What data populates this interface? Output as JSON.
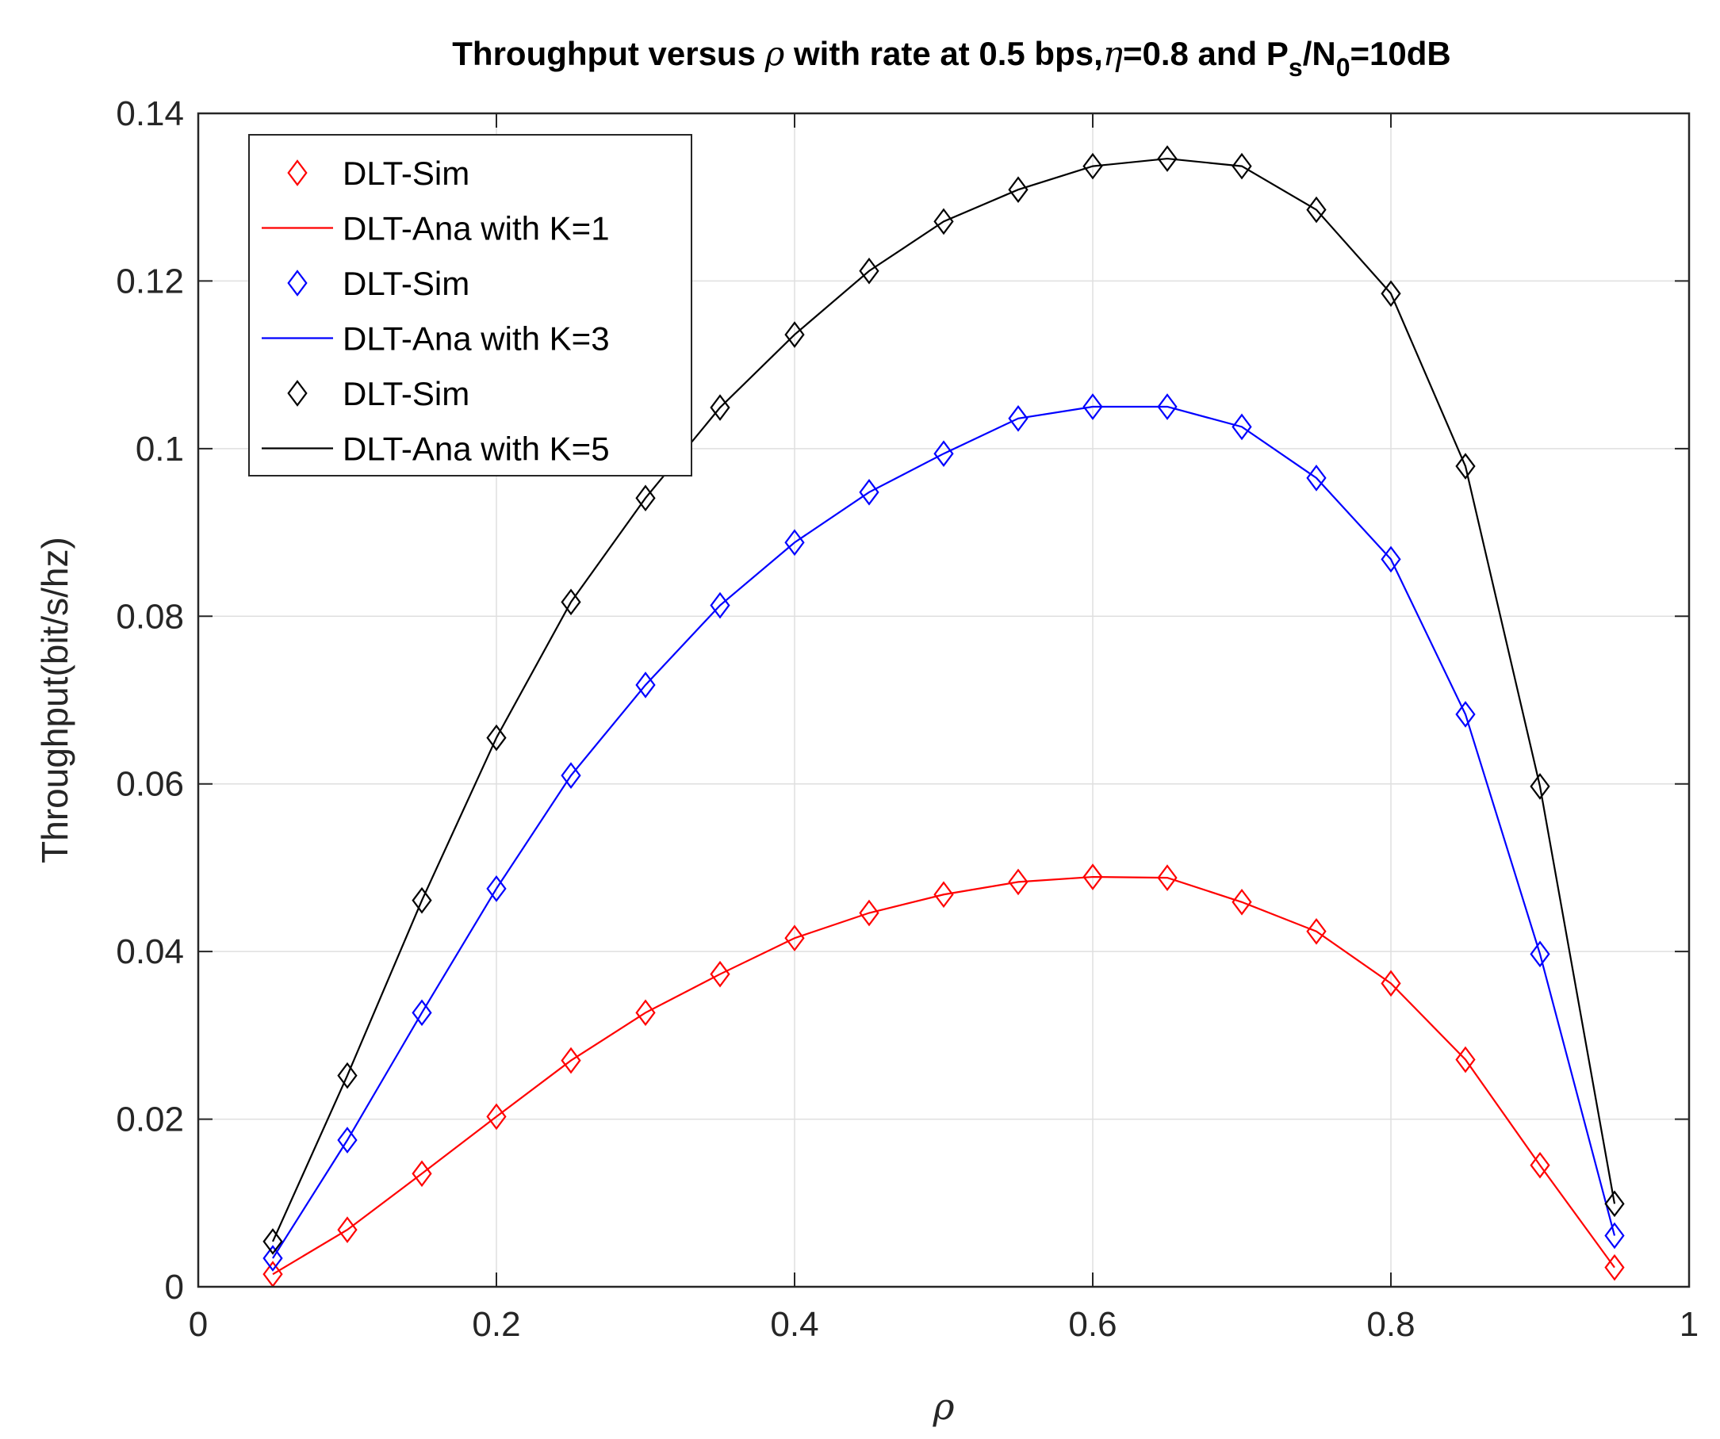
{
  "chart_data": {
    "type": "line",
    "title": {
      "part1": "Throughput versus ",
      "rho": "ρ",
      "part2": " with rate at 0.5 bps,",
      "eta": "η",
      "part3": "=0.8 and P",
      "sub_s": "s",
      "slash": "/N",
      "sub_0": "0",
      "part4": "=10dB"
    },
    "xlabel": "ρ",
    "ylabel": "Throughput(bit/s/hz)",
    "xlim": [
      0,
      1
    ],
    "ylim": [
      0,
      0.14
    ],
    "xticks": [
      0,
      0.2,
      0.4,
      0.6,
      0.8,
      1
    ],
    "xtick_labels": [
      "0",
      "0.2",
      "0.4",
      "0.6",
      "0.8",
      "1"
    ],
    "yticks": [
      0,
      0.02,
      0.04,
      0.06,
      0.08,
      0.1,
      0.12,
      0.14
    ],
    "ytick_labels": [
      "0",
      "0.02",
      "0.04",
      "0.06",
      "0.08",
      "0.1",
      "0.12",
      "0.14"
    ],
    "grid": true,
    "legend_position": "top-left",
    "x": [
      0.05,
      0.1,
      0.15,
      0.2,
      0.25,
      0.3,
      0.35,
      0.4,
      0.45,
      0.5,
      0.55,
      0.6,
      0.65,
      0.7,
      0.75,
      0.8,
      0.85,
      0.9,
      0.95
    ],
    "series": [
      {
        "sim_name": "DLT-Sim",
        "ana_name": "DLT-Ana with K=1",
        "color": "#ff0000",
        "values": [
          0.0015,
          0.0068,
          0.0135,
          0.0203,
          0.027,
          0.0327,
          0.0373,
          0.0416,
          0.0446,
          0.0468,
          0.0483,
          0.0489,
          0.0488,
          0.0459,
          0.0424,
          0.0362,
          0.0271,
          0.0145,
          0.0023
        ]
      },
      {
        "sim_name": "DLT-Sim",
        "ana_name": "DLT-Ana with K=3",
        "color": "#0000ff",
        "values": [
          0.0034,
          0.0175,
          0.0327,
          0.0475,
          0.061,
          0.0718,
          0.0813,
          0.0888,
          0.0948,
          0.0994,
          0.1036,
          0.105,
          0.105,
          0.1026,
          0.0965,
          0.0868,
          0.0683,
          0.0397,
          0.0061
        ]
      },
      {
        "sim_name": "DLT-Sim",
        "ana_name": "DLT-Ana with K=5",
        "color": "#000000",
        "values": [
          0.0054,
          0.0252,
          0.0461,
          0.0655,
          0.0817,
          0.0941,
          0.1049,
          0.1136,
          0.1212,
          0.1271,
          0.1309,
          0.1337,
          0.1346,
          0.1337,
          0.1285,
          0.1185,
          0.0979,
          0.0597,
          0.0099
        ]
      }
    ]
  }
}
